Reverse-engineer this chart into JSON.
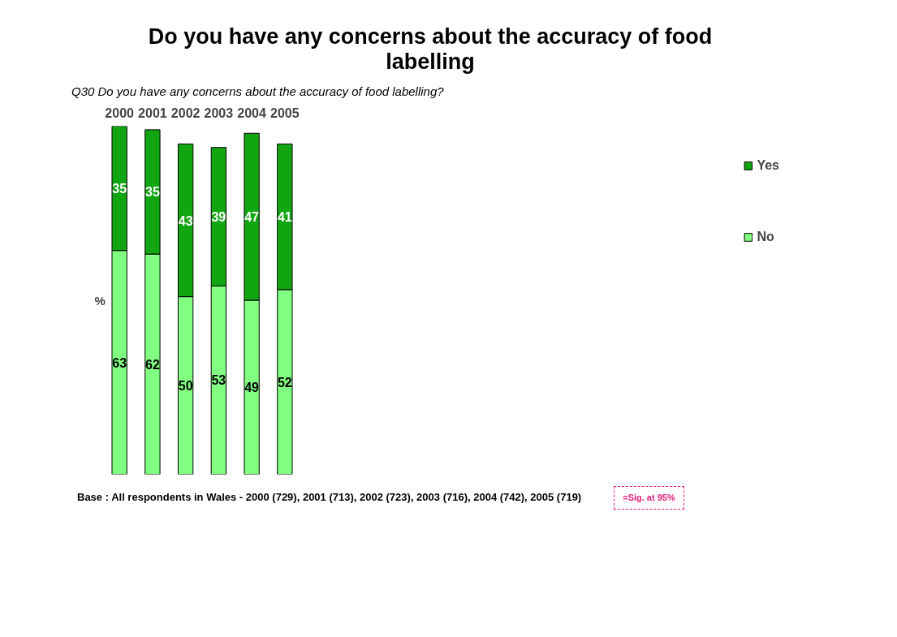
{
  "chart_data": {
    "type": "bar",
    "stacked": true,
    "title": "Do you have any concerns about the accuracy of food labelling",
    "subtitle": "Q30 Do you have any concerns about the accuracy of food labelling?",
    "ylabel": "%",
    "categories": [
      "2000",
      "2001",
      "2002",
      "2003",
      "2004",
      "2005"
    ],
    "series": [
      {
        "name": "No",
        "color": "#80ff80",
        "values": [
          63,
          62,
          50,
          53,
          49,
          52
        ]
      },
      {
        "name": "Yes",
        "color": "#11a511",
        "values": [
          35,
          35,
          43,
          39,
          47,
          41
        ]
      }
    ],
    "data_labels": true,
    "legend": "right",
    "grid": false,
    "annotations": [
      "Base : All respondents in Wales - 2000 (729), 2001 (713), 2002 (723), 2003 (716), 2004 (742), 2005 (719)",
      "=Sig. at 95%"
    ]
  }
}
